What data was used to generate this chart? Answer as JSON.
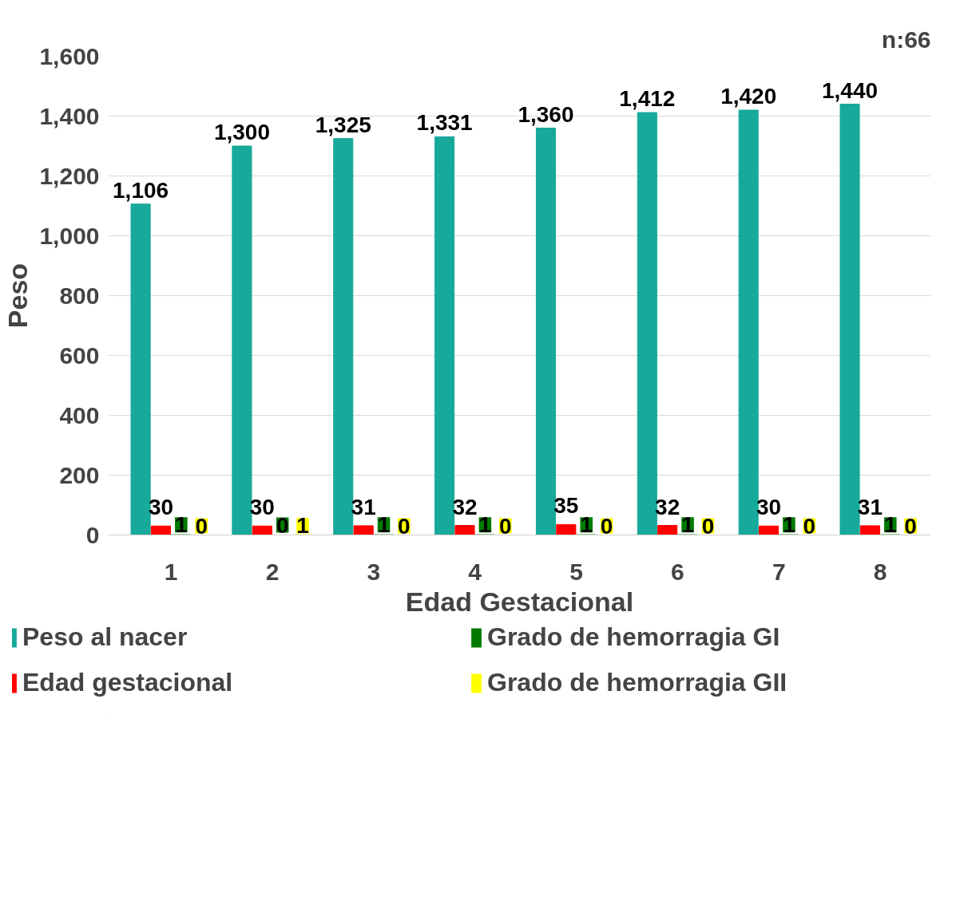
{
  "chart_data": {
    "type": "bar",
    "xlabel": "Edad Gestacional",
    "ylabel": "Peso",
    "categories": [
      "1",
      "2",
      "3",
      "4",
      "5",
      "6",
      "7",
      "8"
    ],
    "series": [
      {
        "name": "Peso al nacer",
        "color": "#17a99a",
        "values": [
          1106,
          1300,
          1325,
          1331,
          1360,
          1412,
          1420,
          1440
        ],
        "value_labels": [
          "1,106",
          "1,300",
          "1,325",
          "1,331",
          "1,360",
          "1,412",
          "1,420",
          "1,440"
        ]
      },
      {
        "name": "Edad gestacional",
        "color": "#ff0000",
        "values": [
          30,
          30,
          31,
          32,
          35,
          32,
          30,
          31
        ],
        "value_labels": [
          "30",
          "30",
          "31",
          "32",
          "35",
          "32",
          "30",
          "31"
        ]
      },
      {
        "name": "Grado de hemorragia GI",
        "color": "#007a00",
        "values": [
          1,
          0,
          1,
          1,
          1,
          1,
          1,
          1
        ],
        "value_labels": [
          "1",
          "0",
          "1",
          "1",
          "1",
          "1",
          "1",
          "1"
        ]
      },
      {
        "name": "Grado de hemorragia GII",
        "color": "#ffff00",
        "values": [
          0,
          1,
          0,
          0,
          0,
          0,
          0,
          0
        ],
        "value_labels": [
          "0",
          "1",
          "0",
          "0",
          "0",
          "0",
          "0",
          "0"
        ]
      }
    ],
    "ylim": [
      0,
      1600
    ],
    "yticks": [
      {
        "value": 0,
        "label": "0"
      },
      {
        "value": 200,
        "label": "200"
      },
      {
        "value": 400,
        "label": "400"
      },
      {
        "value": 600,
        "label": "600"
      },
      {
        "value": 800,
        "label": "800"
      },
      {
        "value": 1000,
        "label": "1,000"
      },
      {
        "value": 1200,
        "label": "1,200"
      },
      {
        "value": 1400,
        "label": "1,400"
      },
      {
        "value": 1600,
        "label": "1,600"
      }
    ],
    "grid": "y",
    "legend": "bottom",
    "annotations": [
      "n:66"
    ]
  }
}
